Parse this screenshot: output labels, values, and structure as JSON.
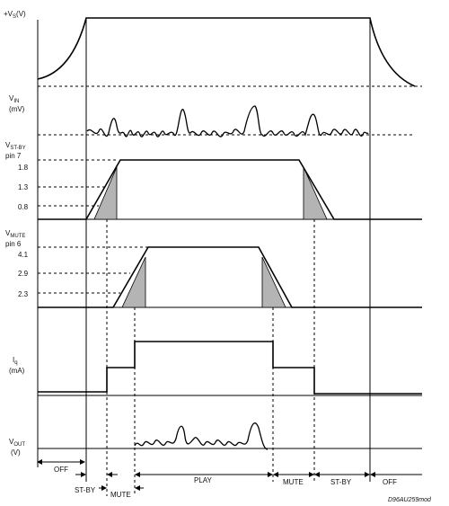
{
  "signals": {
    "vs": {
      "label": "+V",
      "sub": "S",
      "unit": "(V)"
    },
    "vin": {
      "label": "V",
      "sub": "IN",
      "unit": "(mV)"
    },
    "vstby": {
      "label": "V",
      "sub": "ST-BY",
      "pin": "pin 7",
      "ticks": [
        "1.8",
        "1.3",
        "0.8"
      ]
    },
    "vmute": {
      "label": "V",
      "sub": "MUTE",
      "pin": "pin 6",
      "ticks": [
        "4.1",
        "2.9",
        "2.3"
      ]
    },
    "iq": {
      "label": "I",
      "sub": "q",
      "unit": "(mA)"
    },
    "vout": {
      "label": "V",
      "sub": "OUT",
      "unit": "(V)"
    }
  },
  "phases": {
    "off_start": "OFF",
    "stby_start": "ST-BY",
    "mute_start": "MUTE",
    "play": "PLAY",
    "mute_end": "MUTE",
    "stby_end": "ST-BY",
    "off_end": "OFF"
  },
  "reference": "D96AU259mod",
  "colors": {
    "line": "#000000",
    "fill": "#b4b4b4"
  }
}
